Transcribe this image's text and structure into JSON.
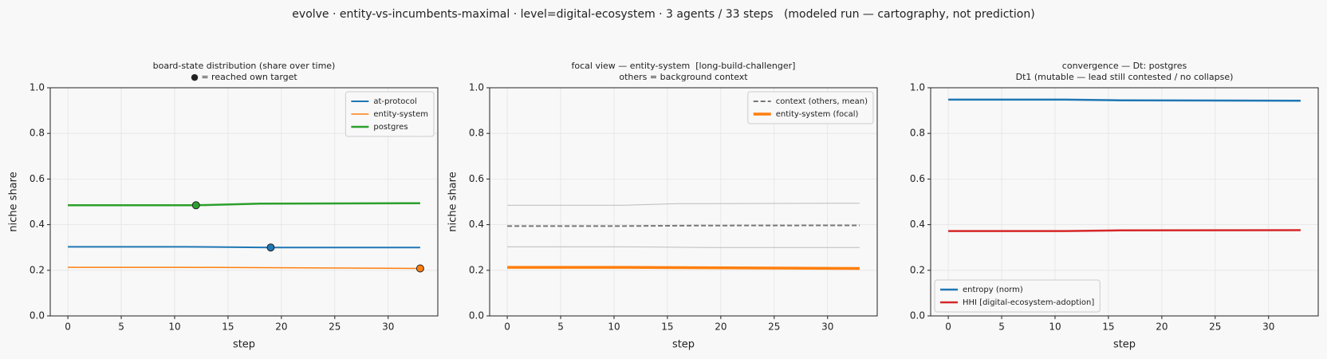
{
  "title": "evolve · entity-vs-incumbents-maximal · level=digital-ecosystem · 3 agents / 33 steps   (modeled run — cartography, not prediction)",
  "chart_data": [
    {
      "type": "line",
      "title": "board-state distribution (share over time)",
      "subtitle": "● = reached own target",
      "xlabel": "step",
      "ylabel": "niche share",
      "legend": "upper right",
      "grid": true,
      "xlim": [
        -1.65,
        34.65
      ],
      "xticks": [
        0,
        5,
        10,
        15,
        20,
        25,
        30
      ],
      "ylim": [
        0,
        1
      ],
      "yticks": [
        {
          "value": 0,
          "label": "0.0"
        },
        {
          "value": 0.2,
          "label": "0.2"
        },
        {
          "value": 0.4,
          "label": "0.4"
        },
        {
          "value": 0.6,
          "label": "0.6"
        },
        {
          "value": 0.8,
          "label": "0.8"
        },
        {
          "value": 1,
          "label": "1.0"
        }
      ],
      "series": [
        {
          "name": "at-protocol",
          "color": "#1f77b4",
          "width": 2,
          "x": [
            0,
            11,
            19,
            33
          ],
          "values": [
            0.303,
            0.303,
            0.3,
            0.3
          ],
          "target": {
            "x": 19,
            "y": 0.3
          }
        },
        {
          "name": "entity-system",
          "color": "#ff7f0e",
          "width": 1.5,
          "x": [
            0,
            11,
            33
          ],
          "values": [
            0.213,
            0.213,
            0.208
          ],
          "target": {
            "x": 33,
            "y": 0.208
          }
        },
        {
          "name": "postgres",
          "color": "#2ca02c",
          "width": 2.5,
          "x": [
            0,
            11,
            12,
            18,
            33
          ],
          "values": [
            0.485,
            0.485,
            0.485,
            0.492,
            0.494
          ],
          "target": {
            "x": 12,
            "y": 0.485
          }
        }
      ]
    },
    {
      "type": "line",
      "title": "focal view — entity-system  [long-build-challenger]",
      "subtitle": "others = background context",
      "xlabel": "step",
      "ylabel": "niche share",
      "legend": "upper right",
      "grid": true,
      "xlim": [
        -1.65,
        34.65
      ],
      "xticks": [
        0,
        5,
        10,
        15,
        20,
        25,
        30
      ],
      "ylim": [
        0,
        1
      ],
      "yticks": [
        {
          "value": 0,
          "label": "0.0"
        },
        {
          "value": 0.2,
          "label": "0.2"
        },
        {
          "value": 0.4,
          "label": "0.4"
        },
        {
          "value": 0.6,
          "label": "0.6"
        },
        {
          "value": 0.8,
          "label": "0.8"
        },
        {
          "value": 1,
          "label": "1.0"
        }
      ],
      "background": [
        {
          "color": "#bbbbbb",
          "x": [
            0,
            11,
            16,
            33
          ],
          "values": [
            0.485,
            0.485,
            0.492,
            0.494
          ]
        },
        {
          "color": "#bbbbbb",
          "x": [
            0,
            11,
            19,
            33
          ],
          "values": [
            0.303,
            0.303,
            0.3,
            0.3
          ]
        }
      ],
      "series": [
        {
          "name": "context (others, mean)",
          "color": "#777777",
          "width": 2,
          "dashed": true,
          "x": [
            0,
            11,
            18,
            33
          ],
          "values": [
            0.394,
            0.394,
            0.396,
            0.397
          ]
        },
        {
          "name": "entity-system (focal)",
          "color": "#ff7f0e",
          "width": 3.5,
          "x": [
            0,
            11,
            33
          ],
          "values": [
            0.213,
            0.213,
            0.208
          ]
        }
      ]
    },
    {
      "type": "line",
      "title": "convergence — Dt: postgres",
      "subtitle": "Dt1 (mutable — lead still contested / no collapse)",
      "xlabel": "step",
      "legend": "lower left",
      "grid": true,
      "xlim": [
        -1.65,
        34.65
      ],
      "xticks": [
        0,
        5,
        10,
        15,
        20,
        25,
        30
      ],
      "ylim": [
        0,
        1
      ],
      "yticks": [
        {
          "value": 0,
          "label": "0.0"
        },
        {
          "value": 0.2,
          "label": "0.2"
        },
        {
          "value": 0.4,
          "label": "0.4"
        },
        {
          "value": 0.6,
          "label": "0.6"
        },
        {
          "value": 0.8,
          "label": "0.8"
        },
        {
          "value": 1,
          "label": "1.0"
        }
      ],
      "series": [
        {
          "name": "entropy (norm)",
          "color": "#1f77b4",
          "width": 2.5,
          "x": [
            0,
            11,
            16,
            33
          ],
          "values": [
            0.948,
            0.948,
            0.945,
            0.943
          ]
        },
        {
          "name": "HHI [digital-ecosystem-adoption]",
          "color": "#d62728",
          "width": 2.5,
          "x": [
            0,
            11,
            16,
            33
          ],
          "values": [
            0.372,
            0.372,
            0.375,
            0.376
          ]
        }
      ]
    }
  ]
}
